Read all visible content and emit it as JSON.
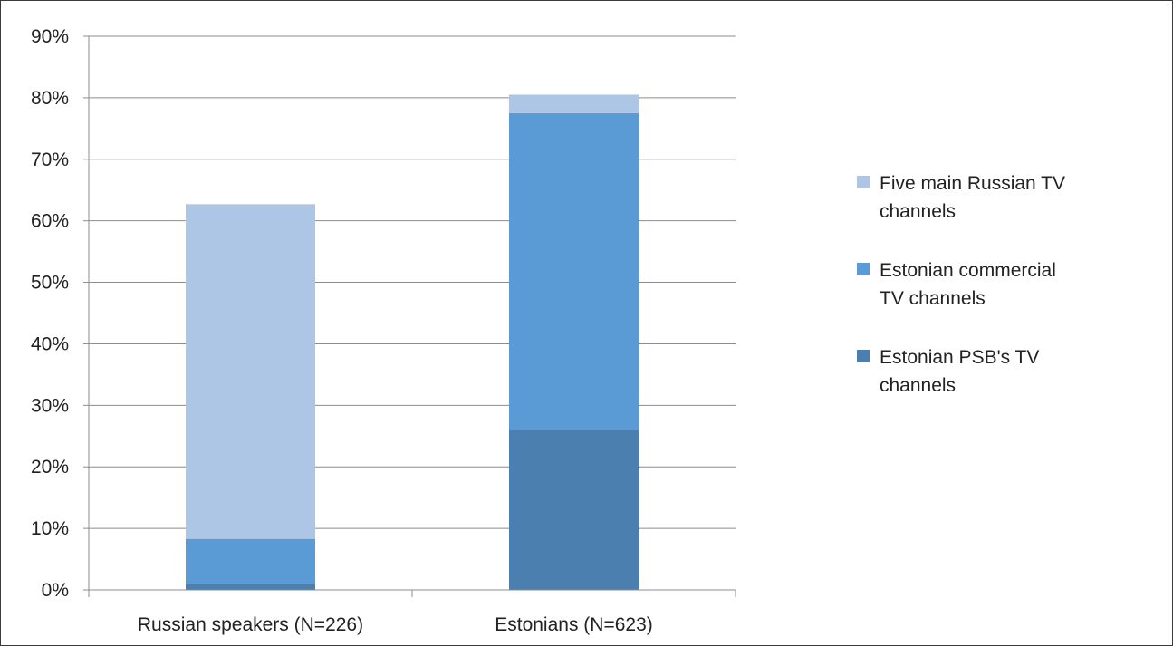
{
  "chart_data": {
    "type": "bar",
    "stacked": true,
    "categories": [
      "Russian speakers (N=226)",
      "Estonians (N=623)"
    ],
    "series": [
      {
        "name": "Estonian PSB's TV channels",
        "legend_lines": [
          "Estonian PSB's TV",
          "channels"
        ],
        "color": "#4a7fb0",
        "values": [
          1,
          26
        ]
      },
      {
        "name": "Estonian commercial TV channels",
        "legend_lines": [
          "Estonian commercial",
          "TV channels"
        ],
        "color": "#5b9bd5",
        "values": [
          7.3,
          51.5
        ]
      },
      {
        "name": "Five main Russian TV channels",
        "legend_lines": [
          "Five main Russian TV",
          "channels"
        ],
        "color": "#adc6e6",
        "values": [
          54.4,
          3
        ]
      }
    ],
    "ylim": [
      0,
      90
    ],
    "yticks": [
      "0%",
      "10%",
      "20%",
      "30%",
      "40%",
      "50%",
      "60%",
      "70%",
      "80%",
      "90%"
    ],
    "grid": true,
    "legend_position": "right",
    "title": "",
    "xlabel": "",
    "ylabel": ""
  }
}
